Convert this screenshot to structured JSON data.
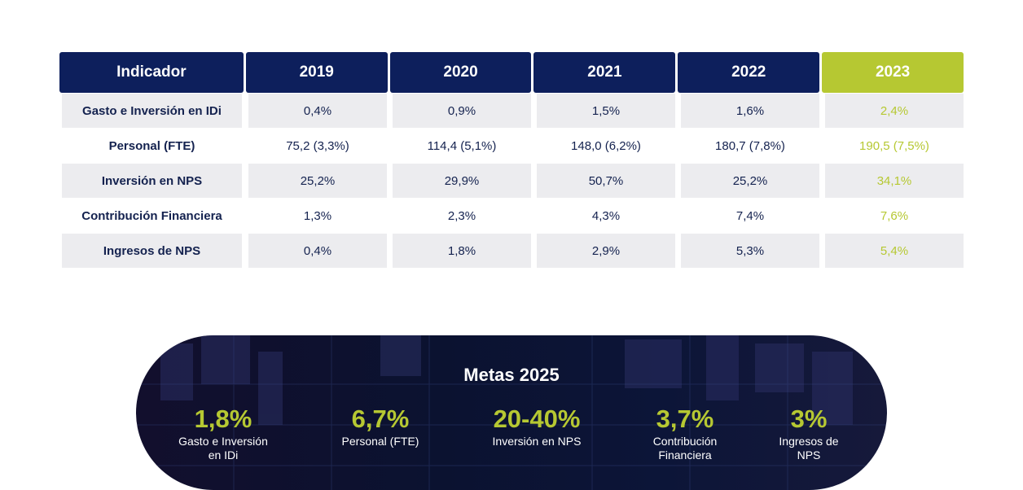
{
  "table": {
    "headers": [
      "Indicador",
      "2019",
      "2020",
      "2021",
      "2022",
      "2023"
    ],
    "rows": [
      {
        "indicator": "Gasto e Inversión en IDi",
        "values": [
          "0,4%",
          "0,9%",
          "1,5%",
          "1,6%",
          "2,4%"
        ]
      },
      {
        "indicator": "Personal (FTE)",
        "values": [
          "75,2 (3,3%)",
          "114,4 (5,1%)",
          "148,0 (6,2%)",
          "180,7 (7,8%)",
          "190,5 (7,5%)"
        ]
      },
      {
        "indicator": "Inversión en NPS",
        "values": [
          "25,2%",
          "29,9%",
          "50,7%",
          "25,2%",
          "34,1%"
        ]
      },
      {
        "indicator": "Contribución Financiera",
        "values": [
          "1,3%",
          "2,3%",
          "4,3%",
          "7,4%",
          "7,6%"
        ]
      },
      {
        "indicator": "Ingresos de NPS",
        "values": [
          "0,4%",
          "1,8%",
          "2,9%",
          "5,3%",
          "5,4%"
        ]
      }
    ]
  },
  "goals": {
    "title": "Metas 2025",
    "items": [
      {
        "value": "1,8%",
        "label": "Gasto e Inversión\nen IDi"
      },
      {
        "value": "6,7%",
        "label": "Personal (FTE)"
      },
      {
        "value": "20-40%",
        "label": "Inversión  en NPS"
      },
      {
        "value": "3,7%",
        "label": "Contribución\nFinanciera"
      },
      {
        "value": "3%",
        "label": "Ingresos de\nNPS"
      }
    ]
  },
  "colors": {
    "navy": "#0d1f5c",
    "accent": "#b6c832",
    "row_shade": "#ececef",
    "text": "#14224f"
  }
}
